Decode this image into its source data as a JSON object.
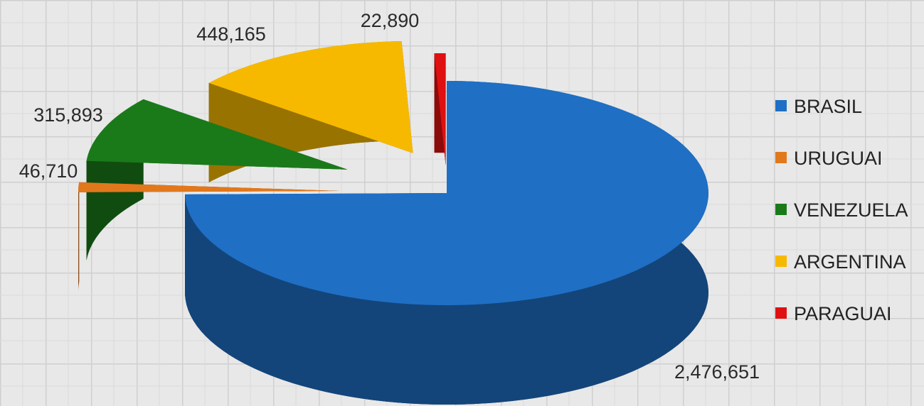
{
  "chart_data": {
    "type": "pie",
    "style": "3d-exploded",
    "categories": [
      "BRASIL",
      "URUGUAI",
      "VENEZUELA",
      "ARGENTINA",
      "PARAGUAI"
    ],
    "values": [
      2476651,
      46710,
      315893,
      448165,
      22890
    ],
    "value_labels": [
      "2,476,651",
      "46,710",
      "315,893",
      "448,165",
      "22,890"
    ],
    "colors": [
      "#1f6fc5",
      "#e2781c",
      "#1a7a1a",
      "#f7b900",
      "#e01010"
    ],
    "legend_position": "right",
    "title": ""
  }
}
